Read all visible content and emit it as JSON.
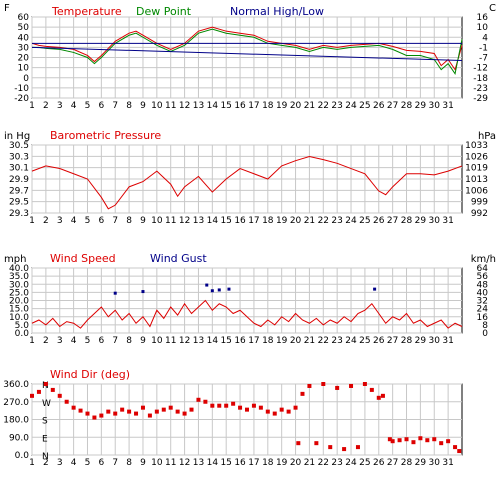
{
  "chart_data": [
    {
      "type": "line",
      "panel": "temperature",
      "left_unit": "F",
      "right_unit": "C",
      "legend": [
        {
          "label": "Temperature",
          "color": "#dd0000"
        },
        {
          "label": "Dew Point",
          "color": "#008800"
        },
        {
          "label": "Normal High/Low",
          "color": "#000088"
        }
      ],
      "ylim": [
        -20,
        60
      ],
      "yticks": [
        60,
        50,
        40,
        30,
        20,
        10,
        0,
        -10,
        -20
      ],
      "right_ticks": [
        16,
        10,
        4,
        -1,
        -7,
        -12,
        -18,
        -23,
        -29
      ],
      "x_categories": [
        "1",
        "2",
        "3",
        "4",
        "5",
        "6",
        "7",
        "8",
        "9",
        "10",
        "11",
        "12",
        "13",
        "14",
        "15",
        "16",
        "17",
        "18",
        "19",
        "20",
        "21",
        "22",
        "23",
        "24",
        "25",
        "26",
        "27",
        "28",
        "29",
        "30",
        "31"
      ],
      "grid": true,
      "series": [
        {
          "name": "Temperature",
          "x": [
            1,
            1.5,
            2,
            3,
            4,
            5,
            5.5,
            6,
            7,
            8,
            8.5,
            9,
            10,
            11,
            12,
            13,
            14,
            15,
            16,
            17,
            18,
            19,
            20,
            21,
            22,
            23,
            24,
            25,
            26,
            27,
            28,
            29,
            30,
            30.5,
            31,
            31.5,
            32
          ],
          "y": [
            34,
            32,
            31,
            30,
            28,
            22,
            16,
            22,
            36,
            44,
            46,
            42,
            34,
            28,
            34,
            46,
            50,
            46,
            44,
            42,
            36,
            34,
            32,
            28,
            32,
            30,
            32,
            33,
            34,
            31,
            27,
            26,
            24,
            12,
            18,
            8,
            32
          ]
        },
        {
          "name": "Dew Point",
          "x": [
            1,
            1.5,
            2,
            3,
            4,
            5,
            5.5,
            6,
            7,
            8,
            8.5,
            9,
            10,
            11,
            12,
            13,
            14,
            15,
            16,
            17,
            18,
            19,
            20,
            21,
            22,
            23,
            24,
            25,
            26,
            27,
            28,
            29,
            30,
            30.5,
            31,
            31.5,
            32
          ],
          "y": [
            30,
            30,
            29,
            28,
            25,
            20,
            14,
            20,
            34,
            42,
            44,
            40,
            32,
            26,
            32,
            44,
            48,
            44,
            42,
            40,
            34,
            32,
            30,
            26,
            30,
            28,
            30,
            31,
            32,
            28,
            22,
            22,
            18,
            8,
            14,
            4,
            38
          ]
        },
        {
          "name": "Normal High/Low",
          "x": [
            1,
            32
          ],
          "y": [
            34,
            34
          ]
        },
        {
          "name": "Normal High/Low",
          "x": [
            1,
            32
          ],
          "y": [
            30,
            17
          ]
        }
      ]
    },
    {
      "type": "line",
      "panel": "pressure",
      "title": "Barometric Pressure",
      "left_unit": "in Hg",
      "right_unit": "hPa",
      "ylim": [
        29.3,
        30.6
      ],
      "yticks": [
        "30.5",
        "30.3",
        "30.1",
        "29.9",
        "29.7",
        "29.5",
        "29.3"
      ],
      "right_ticks": [
        "1033",
        "1026",
        "1019",
        "1013",
        "1006",
        "999",
        "992"
      ],
      "x_categories": [
        "1",
        "2",
        "3",
        "4",
        "5",
        "6",
        "7",
        "8",
        "9",
        "10",
        "11",
        "12",
        "13",
        "14",
        "15",
        "16",
        "17",
        "18",
        "19",
        "20",
        "21",
        "22",
        "23",
        "24",
        "25",
        "26",
        "27",
        "28",
        "29",
        "30",
        "31"
      ],
      "grid": true,
      "series": [
        {
          "name": "Barometric Pressure",
          "x": [
            1,
            2,
            3,
            4,
            5,
            6,
            6.5,
            7,
            8,
            9,
            10,
            11,
            11.5,
            12,
            13,
            14,
            15,
            16,
            17,
            18,
            19,
            20,
            21,
            22,
            23,
            24,
            25,
            26,
            26.5,
            27,
            28,
            29,
            30,
            31,
            32
          ],
          "y": [
            30.1,
            30.2,
            30.15,
            30.05,
            29.95,
            29.6,
            29.38,
            29.45,
            29.8,
            29.9,
            30.1,
            29.85,
            29.62,
            29.8,
            30.0,
            29.7,
            29.95,
            30.15,
            30.05,
            29.95,
            30.2,
            30.3,
            30.38,
            30.32,
            30.25,
            30.15,
            30.05,
            29.72,
            29.65,
            29.8,
            30.05,
            30.05,
            30.03,
            30.1,
            30.2
          ]
        }
      ]
    },
    {
      "type": "line",
      "panel": "wind",
      "title": "Wind Speed",
      "title2": "Wind Gust",
      "left_unit": "mph",
      "right_unit": "km/h",
      "ylim": [
        0,
        40
      ],
      "yticks": [
        "40.0",
        "35.0",
        "30.0",
        "25.0",
        "20.0",
        "15.0",
        "10.0",
        "5.0",
        "0.0"
      ],
      "right_ticks": [
        "64",
        "56",
        "48",
        "40",
        "32",
        "24",
        "16",
        "8",
        "0"
      ],
      "x_categories": [
        "1",
        "2",
        "3",
        "4",
        "5",
        "6",
        "7",
        "8",
        "9",
        "10",
        "11",
        "12",
        "13",
        "14",
        "15",
        "16",
        "17",
        "18",
        "19",
        "20",
        "21",
        "22",
        "23",
        "24",
        "25",
        "26",
        "27",
        "28",
        "29",
        "30",
        "31"
      ],
      "grid": true,
      "series": [
        {
          "name": "Wind Speed",
          "x": [
            1,
            1.5,
            2,
            2.5,
            3,
            3.5,
            4,
            4.5,
            5,
            5.5,
            6,
            6.5,
            7,
            7.5,
            8,
            8.5,
            9,
            9.5,
            10,
            10.5,
            11,
            11.5,
            12,
            12.5,
            13,
            13.5,
            14,
            14.5,
            15,
            15.5,
            16,
            16.5,
            17,
            17.5,
            18,
            18.5,
            19,
            19.5,
            20,
            20.5,
            21,
            21.5,
            22,
            22.5,
            23,
            23.5,
            24,
            24.5,
            25,
            25.5,
            26,
            26.5,
            27,
            27.5,
            28,
            28.5,
            29,
            29.5,
            30,
            30.5,
            31,
            31.5,
            32
          ],
          "y": [
            6,
            8,
            5,
            9,
            4,
            7,
            6,
            3,
            8,
            12,
            16,
            10,
            14,
            8,
            12,
            6,
            10,
            4,
            14,
            9,
            16,
            11,
            18,
            12,
            16,
            20,
            14,
            18,
            16,
            12,
            14,
            10,
            6,
            4,
            8,
            5,
            10,
            7,
            12,
            8,
            6,
            9,
            5,
            8,
            6,
            10,
            7,
            12,
            14,
            18,
            12,
            6,
            10,
            8,
            12,
            6,
            8,
            4,
            6,
            8,
            3,
            6,
            4
          ]
        },
        {
          "name": "Wind Gust",
          "x": [
            7,
            9,
            13.6,
            14,
            14.5,
            15.2,
            25.7
          ],
          "y": [
            24.5,
            25.5,
            29.5,
            26,
            26.5,
            27,
            27
          ]
        }
      ]
    },
    {
      "type": "scatter",
      "panel": "wind_dir",
      "title": "Wind Dir (deg)",
      "ylim": [
        0,
        360
      ],
      "yticks": [
        "360.0",
        "270.0",
        "180.0",
        "90.0",
        "0.0"
      ],
      "compass_labels": [
        "N",
        "W",
        "S",
        "E",
        "N"
      ],
      "x_categories": [
        "1",
        "2",
        "3",
        "4",
        "5",
        "6",
        "7",
        "8",
        "9",
        "10",
        "11",
        "12",
        "13",
        "14",
        "15",
        "16",
        "17",
        "18",
        "19",
        "20",
        "21",
        "22",
        "23",
        "24",
        "25",
        "26",
        "27",
        "28",
        "29",
        "30",
        "31"
      ],
      "grid": true,
      "series": [
        {
          "name": "Wind Dir (deg)",
          "x": [
            1,
            1.5,
            2,
            2.5,
            3,
            3.5,
            4,
            4.5,
            5,
            5.5,
            6,
            6.5,
            7,
            7.5,
            8,
            8.5,
            9,
            9.5,
            10,
            10.5,
            11,
            11.5,
            12,
            12.5,
            13,
            13.5,
            14,
            14.5,
            15,
            15.5,
            16,
            16.5,
            17,
            17.5,
            18,
            18.5,
            19,
            19.5,
            20,
            20.2,
            20.5,
            21,
            21.5,
            22,
            22.5,
            23,
            23.5,
            24,
            24.5,
            25,
            25.5,
            26,
            26.3,
            26.8,
            27,
            27.5,
            28,
            28.5,
            29,
            29.5,
            30,
            30.5,
            31,
            31.5,
            31.8
          ],
          "y": [
            300,
            320,
            360,
            330,
            300,
            270,
            240,
            225,
            210,
            190,
            200,
            220,
            210,
            230,
            220,
            210,
            240,
            200,
            220,
            230,
            240,
            220,
            210,
            230,
            280,
            270,
            250,
            250,
            250,
            260,
            240,
            230,
            250,
            240,
            220,
            210,
            230,
            220,
            240,
            60,
            310,
            350,
            60,
            360,
            40,
            340,
            30,
            350,
            40,
            360,
            330,
            290,
            300,
            80,
            70,
            75,
            80,
            65,
            85,
            75,
            80,
            60,
            70,
            40,
            20
          ]
        }
      ]
    }
  ]
}
